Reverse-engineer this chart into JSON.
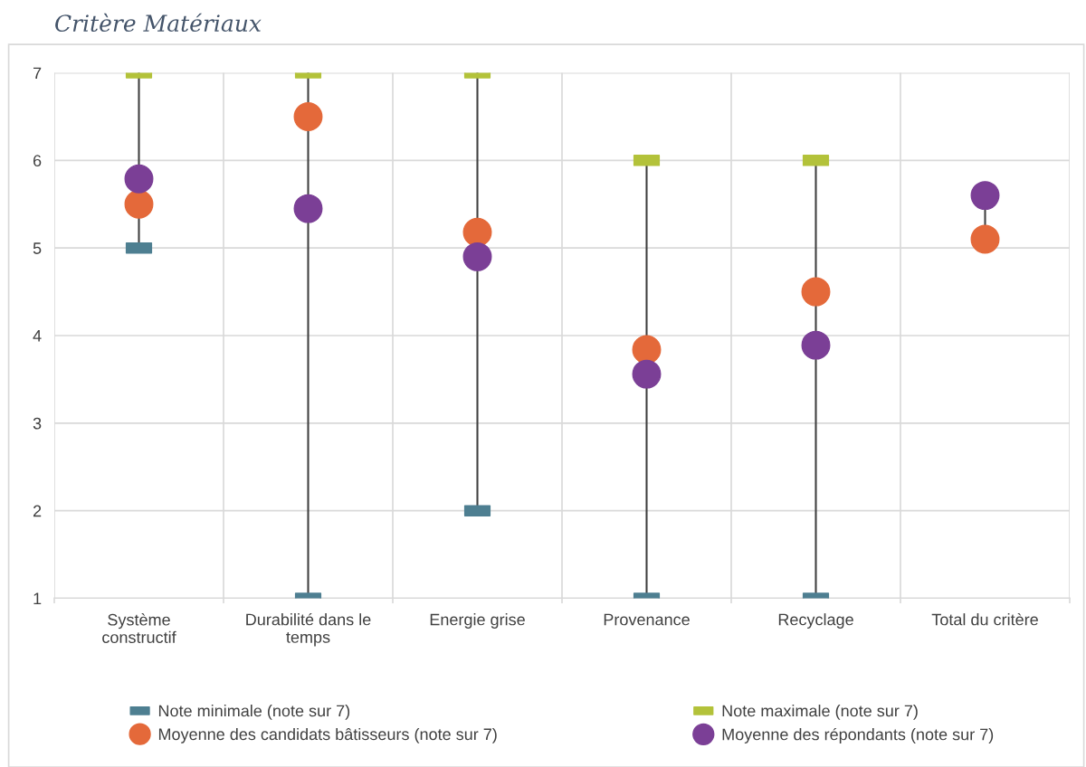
{
  "chart_data": {
    "type": "scatter",
    "title": "Critère Matériaux",
    "categories": [
      "Système\nconstructif",
      "Durabilité dans le\ntemps",
      "Energie grise",
      "Provenance",
      "Recyclage",
      "Total du critère"
    ],
    "series": [
      {
        "name": "Note minimale (note sur 7)",
        "color": "#4e7f91",
        "marker": "square",
        "values": [
          5,
          1,
          2,
          1,
          1,
          null
        ]
      },
      {
        "name": "Note maximale (note sur 7)",
        "color": "#b3c23a",
        "marker": "square",
        "values": [
          7,
          7,
          7,
          6,
          6,
          null
        ]
      },
      {
        "name": "Moyenne des candidats bâtisseurs (note sur 7)",
        "color": "#e4693a",
        "marker": "circle",
        "values": [
          5.5,
          6.5,
          5.18,
          3.84,
          4.5,
          5.1
        ]
      },
      {
        "name": "Moyenne des répondants (note sur 7)",
        "color": "#7b3f96",
        "marker": "circle",
        "values": [
          5.79,
          5.45,
          4.9,
          3.56,
          3.89,
          5.6
        ]
      }
    ],
    "ylim": [
      1,
      7
    ],
    "yticks": [
      1,
      2,
      3,
      4,
      5,
      6,
      7
    ],
    "grid": true,
    "legend": "bottom"
  }
}
